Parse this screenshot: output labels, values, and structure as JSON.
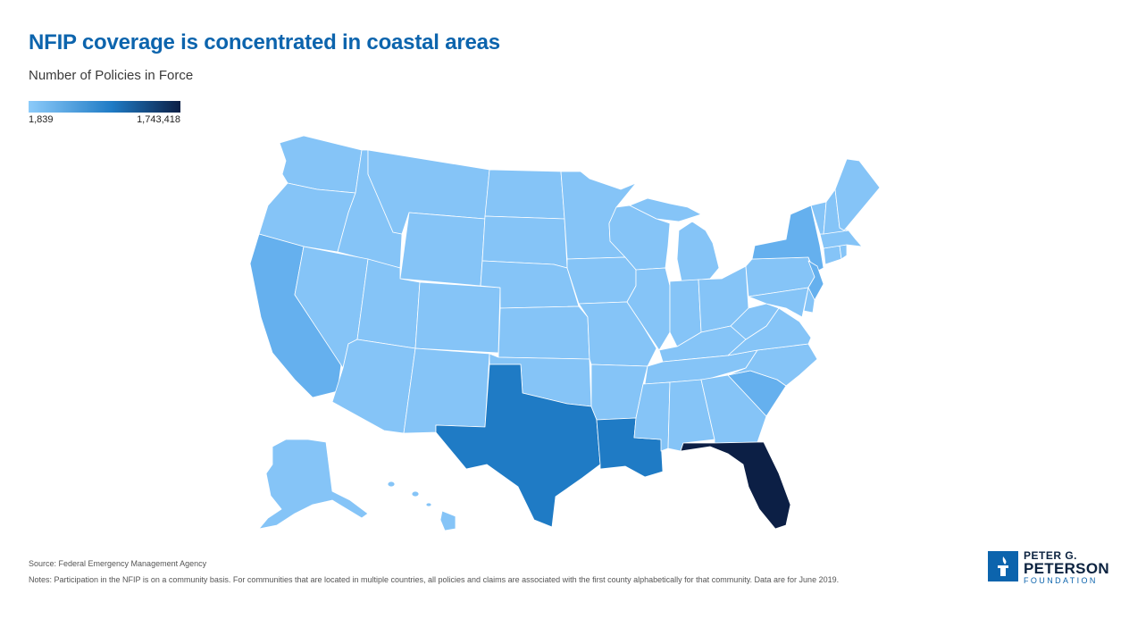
{
  "header": {
    "title": "NFIP coverage is concentrated in coastal areas",
    "subtitle": "Number of Policies in Force"
  },
  "legend": {
    "min_label": "1,839",
    "max_label": "1,743,418",
    "min_value": 1839,
    "max_value": 1743418,
    "color_low": "#8ccbfa",
    "color_mid": "#1f7bc5",
    "color_high": "#0c1f45"
  },
  "map": {
    "colors": {
      "light": "#85c4f7",
      "medium_light": "#65b0ee",
      "medium": "#1f7bc5",
      "dark": "#0c1f45"
    },
    "states": [
      {
        "name": "Washington",
        "shade": "light"
      },
      {
        "name": "Oregon",
        "shade": "light"
      },
      {
        "name": "California",
        "shade": "medium_light"
      },
      {
        "name": "Idaho",
        "shade": "light"
      },
      {
        "name": "Nevada",
        "shade": "light"
      },
      {
        "name": "Montana",
        "shade": "light"
      },
      {
        "name": "Wyoming",
        "shade": "light"
      },
      {
        "name": "Utah",
        "shade": "light"
      },
      {
        "name": "Arizona",
        "shade": "light"
      },
      {
        "name": "Colorado",
        "shade": "light"
      },
      {
        "name": "New Mexico",
        "shade": "light"
      },
      {
        "name": "North Dakota",
        "shade": "light"
      },
      {
        "name": "South Dakota",
        "shade": "light"
      },
      {
        "name": "Nebraska",
        "shade": "light"
      },
      {
        "name": "Kansas",
        "shade": "light"
      },
      {
        "name": "Oklahoma",
        "shade": "light"
      },
      {
        "name": "Texas",
        "shade": "medium"
      },
      {
        "name": "Minnesota",
        "shade": "light"
      },
      {
        "name": "Iowa",
        "shade": "light"
      },
      {
        "name": "Missouri",
        "shade": "light"
      },
      {
        "name": "Arkansas",
        "shade": "light"
      },
      {
        "name": "Louisiana",
        "shade": "medium"
      },
      {
        "name": "Wisconsin",
        "shade": "light"
      },
      {
        "name": "Illinois",
        "shade": "light"
      },
      {
        "name": "Michigan",
        "shade": "light"
      },
      {
        "name": "Indiana",
        "shade": "light"
      },
      {
        "name": "Ohio",
        "shade": "light"
      },
      {
        "name": "Kentucky",
        "shade": "light"
      },
      {
        "name": "Tennessee",
        "shade": "light"
      },
      {
        "name": "Mississippi",
        "shade": "light"
      },
      {
        "name": "Alabama",
        "shade": "light"
      },
      {
        "name": "Georgia",
        "shade": "light"
      },
      {
        "name": "Florida",
        "shade": "dark"
      },
      {
        "name": "South Carolina",
        "shade": "medium_light"
      },
      {
        "name": "North Carolina",
        "shade": "light"
      },
      {
        "name": "Virginia",
        "shade": "light"
      },
      {
        "name": "West Virginia",
        "shade": "light"
      },
      {
        "name": "Pennsylvania",
        "shade": "light"
      },
      {
        "name": "New York",
        "shade": "medium_light"
      },
      {
        "name": "New Jersey",
        "shade": "medium_light"
      },
      {
        "name": "Maryland",
        "shade": "light"
      },
      {
        "name": "Delaware",
        "shade": "light"
      },
      {
        "name": "Connecticut",
        "shade": "light"
      },
      {
        "name": "Rhode Island",
        "shade": "light"
      },
      {
        "name": "Massachusetts",
        "shade": "light"
      },
      {
        "name": "Vermont",
        "shade": "light"
      },
      {
        "name": "New Hampshire",
        "shade": "light"
      },
      {
        "name": "Maine",
        "shade": "light"
      },
      {
        "name": "Alaska",
        "shade": "light"
      },
      {
        "name": "Hawaii",
        "shade": "light"
      }
    ]
  },
  "footer": {
    "source": "Source: Federal Emergency Management Agency",
    "notes": "Notes: Participation in the NFIP is on a community basis. For communities that are located in multiple countries, all policies and claims are associated with the first county alphabetically for that community. Data are for June 2019."
  },
  "logo": {
    "line1": "PETER G.",
    "line2": "PETERSON",
    "line3": "FOUNDATION",
    "icon": "torch-icon",
    "color": "#0c64ad"
  }
}
